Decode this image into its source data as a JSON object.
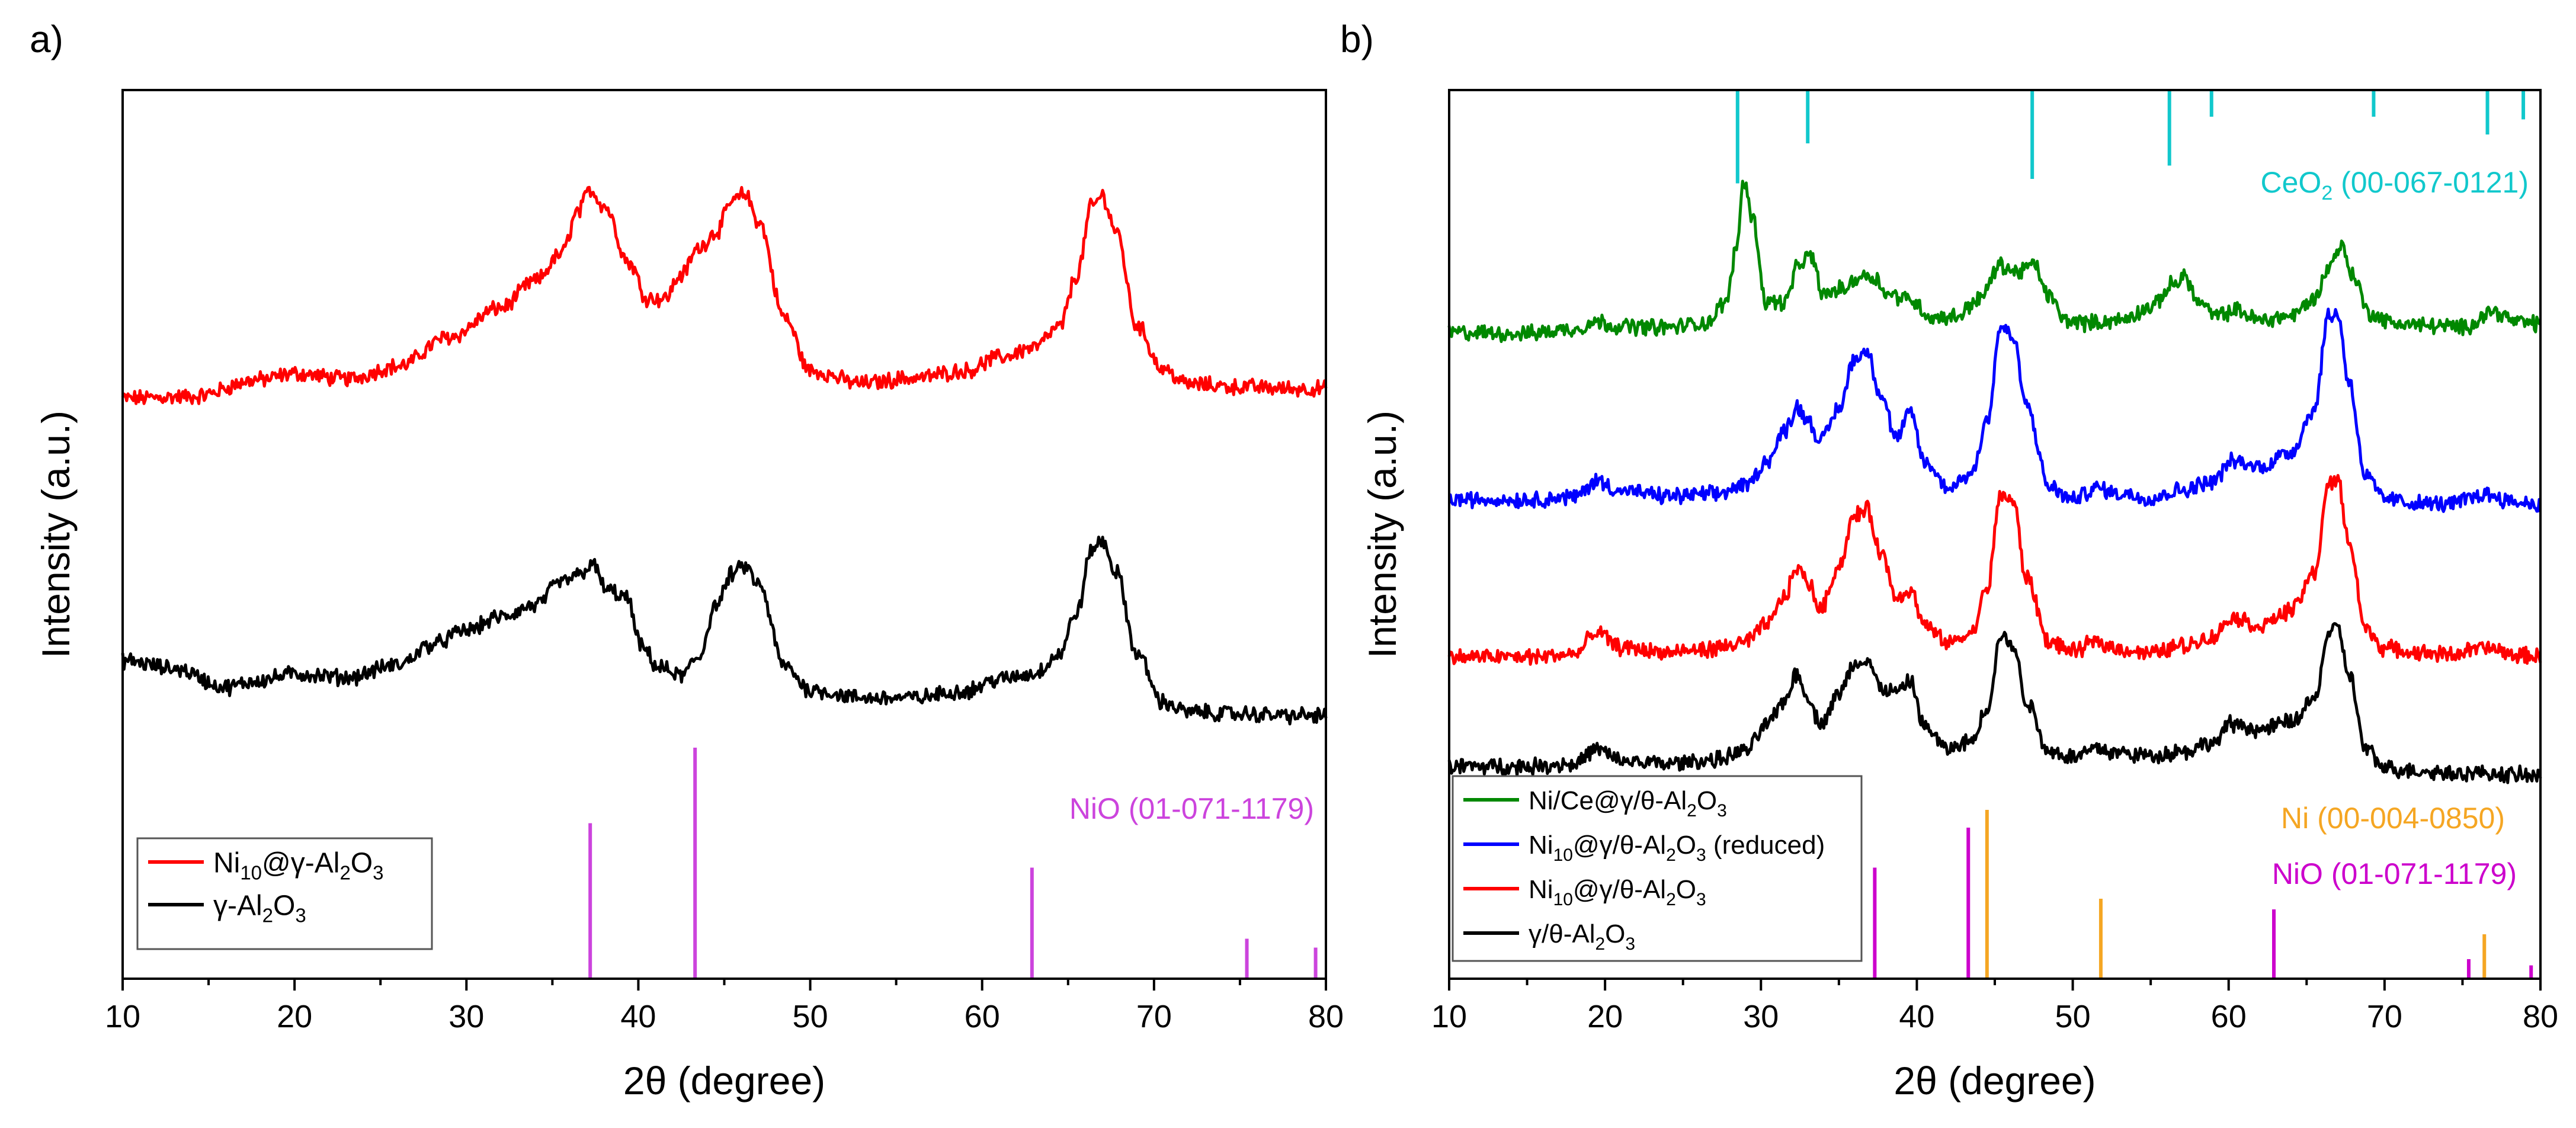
{
  "panels": [
    {
      "id": "a",
      "label": "a)",
      "colors": {
        "red": "#ff0000",
        "black": "#000000",
        "ref": "#cc44dd"
      },
      "chart_data": {
        "type": "line",
        "xlabel": "2θ (degree)",
        "ylabel": "Intensity (a.u.)",
        "xlim": [
          10,
          80
        ],
        "ylim": [
          0,
          100
        ],
        "xticks": [
          "10",
          "20",
          "30",
          "40",
          "50",
          "60",
          "70",
          "80"
        ],
        "series": [
          {
            "name": "Ni10@γ-Al2O3",
            "legend": {
              "main": "Ni",
              "parts": [
                [
                  "10",
                  "sub"
                ],
                [
                  "@γ-Al",
                  ""
                ],
                [
                  "2",
                  "sub"
                ],
                [
                  "O",
                  ""
                ],
                [
                  "3",
                  "sub"
                ]
              ]
            },
            "color": "#ff0000",
            "x": [
              10,
              14,
              18,
              20,
              23,
              26,
              29,
              32,
              34,
              35.5,
              36.5,
              37.2,
              38,
              39.5,
              40.5,
              41.5,
              42.5,
              43.5,
              44.5,
              45.5,
              46.2,
              47,
              48.5,
              50,
              53,
              56,
              59,
              61,
              63,
              64.5,
              65.5,
              66.4,
              67,
              67.8,
              69,
              70.5,
              72,
              75,
              78,
              80
            ],
            "y": [
              65.3,
              65.5,
              67.4,
              68.1,
              67.5,
              68.9,
              72.2,
              75.5,
              78.5,
              81.5,
              86.3,
              88.8,
              87.0,
              80.5,
              76.6,
              76.5,
              79.2,
              82.2,
              84.0,
              87.5,
              88.3,
              85.2,
              74.4,
              68.4,
              67.0,
              67.6,
              68.4,
              69.9,
              71.0,
              73.3,
              79.1,
              87.0,
              88.1,
              84.1,
              73.5,
              68.6,
              66.9,
              66.6,
              66.4,
              66.4
            ]
          },
          {
            "name": "γ-Al2O3",
            "legend": {
              "main": "γ-Al",
              "parts": [
                [
                  "2",
                  "sub"
                ],
                [
                  "O",
                  ""
                ],
                [
                  "3",
                  "sub"
                ]
              ]
            },
            "color": "#000000",
            "x": [
              10,
              13,
              16,
              18,
              20,
              23,
              26,
              28,
              30,
              32,
              34,
              35.5,
              36.5,
              37.3,
              38.2,
              39.3,
              40.2,
              41.2,
              42.5,
              43.5,
              44.5,
              45.5,
              46.2,
              47,
              48.5,
              50,
              53,
              56,
              59,
              61,
              63,
              64.5,
              65.5,
              66.4,
              67,
              67.8,
              69,
              70.5,
              72,
              75,
              78,
              80
            ],
            "y": [
              35.8,
              34.9,
              32.8,
              33.6,
              34.3,
              33.9,
              35.3,
              37.6,
              39.2,
              40.7,
              42.0,
              44.6,
              45.4,
              46.6,
              43.7,
              42.9,
              37.3,
              35.0,
              34.1,
              36.1,
              42.0,
              45.6,
              46.4,
              44.3,
              35.2,
              32.5,
              31.6,
              31.6,
              32.4,
              33.7,
              34.3,
              36.5,
              41.2,
              48.4,
              49.2,
              45.7,
              36.6,
              31.1,
              30.0,
              29.8,
              29.6,
              29.6
            ]
          }
        ],
        "references": [
          {
            "name": "NiO (01-071-1179)",
            "color": "#cc44dd",
            "peaks": [
              {
                "x": 37.2,
                "h": 17.5
              },
              {
                "x": 43.3,
                "h": 26.0
              },
              {
                "x": 62.9,
                "h": 12.5
              },
              {
                "x": 75.4,
                "h": 4.5
              },
              {
                "x": 79.4,
                "h": 3.5
              }
            ]
          }
        ],
        "legend_position": "bottom-left"
      }
    },
    {
      "id": "b",
      "label": "b)",
      "colors": {
        "green": "#008800",
        "blue": "#0000ff",
        "red": "#ff0000",
        "black": "#000000",
        "cyan": "#11c8cc",
        "orange": "#f5a623",
        "magenta": "#cc00cc"
      },
      "chart_data": {
        "type": "line",
        "xlabel": "2θ (degree)",
        "ylabel": "Intensity (a.u.)",
        "xlim": [
          10,
          80
        ],
        "ylim": [
          0,
          100
        ],
        "xticks": [
          "10",
          "20",
          "30",
          "40",
          "50",
          "60",
          "70",
          "80"
        ],
        "series": [
          {
            "name": "Ni/Ce@γ/θ-Al2O3",
            "legend": {
              "main": "Ni/Ce@γ/θ-Al",
              "parts": [
                [
                  "2",
                  "sub"
                ],
                [
                  "O",
                  ""
                ],
                [
                  "3",
                  "sub"
                ]
              ]
            },
            "color": "#008800",
            "x": [
              10,
              15,
              18,
              19.5,
              21,
              24,
              26.5,
              27.8,
              28.4,
              28.9,
              29.5,
              30.3,
              31.5,
              32.5,
              33.2,
              34,
              35.2,
              36.5,
              37.2,
              38.2,
              39.5,
              41,
              42.5,
              44,
              45.4,
              46.3,
              47.5,
              48.5,
              49.5,
              51,
              53,
              55,
              56.5,
              57.2,
              58,
              59.2,
              60.5,
              62,
              64,
              65.5,
              66.5,
              67.2,
              68,
              69,
              70.5,
              73,
              75,
              77,
              78.5,
              80
            ],
            "y": [
              72.7,
              72.6,
              73.1,
              73.9,
              73.4,
              73.3,
              73.8,
              76.2,
              82.0,
              89.8,
              85.4,
              76.2,
              76.1,
              80.5,
              81.3,
              77.0,
              77.6,
              79.1,
              79.0,
              77.0,
              76.5,
              74.4,
              74.5,
              76.5,
              80.3,
              79.5,
              80.3,
              76.8,
              74.1,
              73.8,
              74.1,
              75.5,
              78.2,
              79.1,
              76.2,
              74.6,
              75.2,
              74.1,
              74.6,
              76.5,
              80.3,
              82.5,
              79.1,
              74.9,
              73.8,
              73.5,
              73.3,
              75.1,
              73.9,
              73.7
            ]
          },
          {
            "name": "Ni10@γ/θ-Al2O3 (reduced)",
            "legend": {
              "main": "Ni",
              "parts": [
                [
                  "10",
                  "sub"
                ],
                [
                  "@γ/θ-Al",
                  ""
                ],
                [
                  "2",
                  "sub"
                ],
                [
                  "O",
                  ""
                ],
                [
                  "3",
                  "sub"
                ],
                [
                  " (reduced)",
                  ""
                ]
              ]
            },
            "color": "#0000ff",
            "x": [
              10,
              15,
              18,
              19.5,
              21,
              24,
              27,
              29,
              30.5,
              31.5,
              32.3,
              33,
              33.8,
              35,
              36,
              36.8,
              37.7,
              38.7,
              39.6,
              40.5,
              42,
              43.5,
              44.5,
              45.4,
              46.2,
              47,
              48.5,
              50,
              51.5,
              53,
              55,
              57,
              59,
              60.2,
              62,
              64,
              65.5,
              66.4,
              67,
              67.7,
              68.8,
              70,
              72,
              74,
              76.5,
              78.5,
              80
            ],
            "y": [
              53.9,
              53.9,
              54.2,
              56.0,
              54.9,
              54.3,
              54.5,
              55.5,
              58.4,
              61.6,
              64.3,
              63.0,
              60.5,
              64.1,
              69.8,
              70.6,
              65.7,
              60.8,
              63.7,
              58.1,
              55.3,
              56.8,
              62.8,
              73.4,
              72.0,
              64.6,
              55.3,
              53.9,
              55.2,
              54.6,
              54.1,
              55.0,
              56.0,
              58.2,
              57.6,
              59.3,
              64.1,
              74.6,
              74.8,
              67.3,
              56.5,
              54.0,
              53.5,
              53.4,
              54.5,
              53.6,
              53.4
            ]
          },
          {
            "name": "Ni10@γ/θ-Al2O3",
            "legend": {
              "main": "Ni",
              "parts": [
                [
                  "10",
                  "sub"
                ],
                [
                  "@γ/θ-Al",
                  ""
                ],
                [
                  "2",
                  "sub"
                ],
                [
                  "O",
                  ""
                ],
                [
                  "3",
                  "sub"
                ]
              ]
            },
            "color": "#ff0000",
            "x": [
              10,
              15,
              18,
              19.5,
              21,
              24,
              27,
              29,
              30.5,
              31.5,
              32.3,
              33,
              33.8,
              35,
              36,
              36.8,
              37.7,
              38.7,
              39.6,
              40.5,
              42,
              43.5,
              44.5,
              45.4,
              46.2,
              47,
              48.5,
              50,
              51.5,
              53,
              55,
              57,
              59,
              60.2,
              62,
              64,
              65.5,
              66.4,
              67,
              67.7,
              68.8,
              70,
              72,
              74,
              76.5,
              78.5,
              80
            ],
            "y": [
              36.2,
              36.2,
              36.5,
              38.9,
              37.3,
              36.7,
              37.1,
              37.9,
              40.0,
              43.0,
              46.2,
              44.7,
              41.6,
              46.4,
              52.1,
              52.8,
              47.9,
              43.0,
              43.7,
              39.7,
              37.8,
              38.8,
              43.9,
              54.6,
              53.6,
              45.2,
              37.9,
              36.8,
              37.9,
              37.1,
              36.6,
              37.5,
              38.4,
              40.7,
              39.7,
              41.4,
              45.6,
              55.5,
              56.1,
              49.3,
              39.3,
              37.2,
              36.7,
              36.5,
              37.2,
              36.4,
              36.3
            ]
          },
          {
            "name": "γ/θ-Al2O3",
            "legend": {
              "main": "γ/θ-Al",
              "parts": [
                [
                  "2",
                  "sub"
                ],
                [
                  "O",
                  ""
                ],
                [
                  "3",
                  "sub"
                ]
              ]
            },
            "color": "#000000",
            "x": [
              10,
              15,
              18,
              19.5,
              21,
              24,
              27,
              29,
              30.5,
              31.5,
              32.3,
              33,
              33.8,
              35,
              36,
              36.8,
              37.7,
              38.7,
              39.6,
              40.5,
              42,
              43.5,
              44.5,
              45.4,
              46.2,
              47,
              48.5,
              50,
              51.5,
              53,
              55,
              57,
              59,
              60.2,
              62,
              64,
              65.5,
              66.4,
              67,
              67.7,
              68.8,
              70,
              72,
              74,
              76.5,
              78.5,
              80
            ],
            "y": [
              23.9,
              23.9,
              24.2,
              25.8,
              24.5,
              24.2,
              24.6,
              25.6,
              28.8,
              31.3,
              34.3,
              31.7,
              28.7,
              32.0,
              35.4,
              35.9,
              32.7,
              32.2,
              33.4,
              28.3,
              25.8,
              26.7,
              30.4,
              38.6,
              37.4,
              31.3,
              25.6,
              25.0,
              25.9,
              25.4,
              25.1,
              25.6,
              26.5,
              28.7,
              28.0,
              28.9,
              31.4,
              38.7,
              39.5,
              34.3,
              25.8,
              23.7,
              23.4,
              23.2,
              23.1,
              22.9,
              22.8
            ]
          }
        ],
        "references": [
          {
            "name": "CeO2 (00-067-0121)",
            "label_main": "CeO",
            "label_sub": "2",
            "label_tail": " (00-067-0121)",
            "color": "#11c8cc",
            "from_top": true,
            "peaks": [
              {
                "x": 28.5,
                "h": 10.5
              },
              {
                "x": 33.0,
                "h": 6.0
              },
              {
                "x": 47.4,
                "h": 10.0
              },
              {
                "x": 56.2,
                "h": 8.5
              },
              {
                "x": 58.9,
                "h": 3.0
              },
              {
                "x": 69.3,
                "h": 3.0
              },
              {
                "x": 76.6,
                "h": 5.0
              },
              {
                "x": 78.9,
                "h": 3.3
              }
            ]
          },
          {
            "name": "Ni (00-004-0850)",
            "color": "#f5a623",
            "peaks": [
              {
                "x": 44.5,
                "h": 19.0
              },
              {
                "x": 51.8,
                "h": 9.0
              },
              {
                "x": 76.4,
                "h": 5.0
              }
            ]
          },
          {
            "name": "NiO (01-071-1179)",
            "color": "#cc00cc",
            "peaks": [
              {
                "x": 37.3,
                "h": 12.5
              },
              {
                "x": 43.3,
                "h": 17.0
              },
              {
                "x": 62.9,
                "h": 7.8
              },
              {
                "x": 75.4,
                "h": 2.2
              },
              {
                "x": 79.4,
                "h": 1.5
              }
            ]
          }
        ],
        "legend_position": "bottom-left"
      }
    }
  ]
}
